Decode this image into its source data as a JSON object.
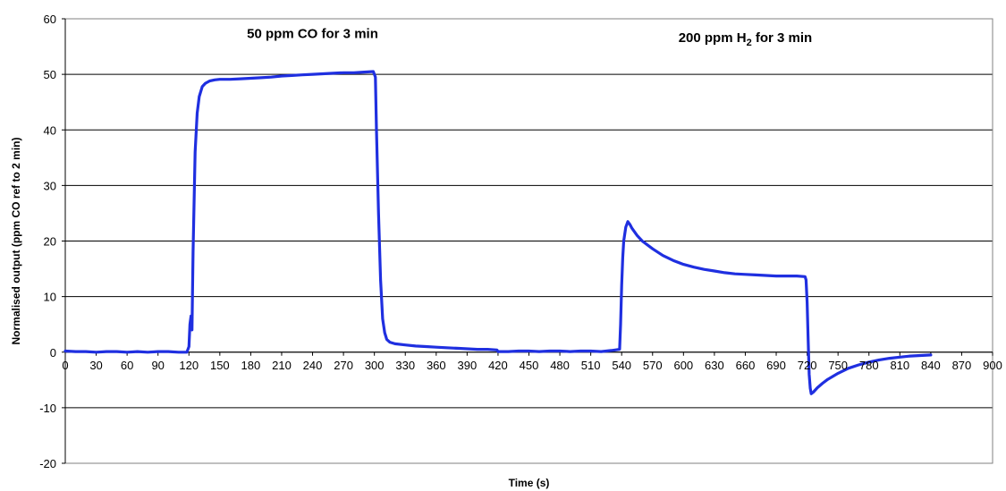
{
  "chart_data": {
    "type": "line",
    "title": "",
    "xlabel": "Time (s)",
    "ylabel": "Normalised output (ppm CO ref to 2 min)",
    "xlim": [
      0,
      900
    ],
    "ylim": [
      -20,
      60
    ],
    "x_ticks": [
      0,
      30,
      60,
      90,
      120,
      150,
      180,
      210,
      240,
      270,
      300,
      330,
      360,
      390,
      420,
      450,
      480,
      510,
      540,
      570,
      600,
      630,
      660,
      690,
      720,
      750,
      780,
      810,
      840,
      870,
      900
    ],
    "y_ticks": [
      -20,
      -10,
      0,
      10,
      20,
      30,
      40,
      50,
      60
    ],
    "grid": "horizontal",
    "legend": "none",
    "line_color": "#1f2fe0",
    "annotations": [
      {
        "text": "50 ppm CO for 3 min",
        "x": 240,
        "y": 56.5
      },
      {
        "text": "200 ppm H",
        "sub": "2",
        "tail": " for 3 min",
        "x": 660,
        "y": 55.8
      }
    ],
    "series": [
      {
        "x": [
          0,
          10,
          20,
          30,
          40,
          50,
          60,
          70,
          80,
          90,
          100,
          110,
          118,
          120,
          121,
          122,
          123,
          124,
          126,
          128,
          130,
          133,
          136,
          140,
          145,
          150,
          160,
          170,
          180,
          190,
          200,
          210,
          220,
          230,
          240,
          250,
          260,
          270,
          280,
          290,
          299,
          301,
          302,
          304,
          306,
          308,
          310,
          312,
          315,
          320,
          330,
          340,
          350,
          360,
          370,
          380,
          390,
          400,
          410,
          419,
          420,
          430,
          440,
          450,
          460,
          470,
          480,
          490,
          500,
          510,
          520,
          530,
          538,
          539,
          540,
          541,
          542,
          544,
          546,
          548,
          550,
          555,
          560,
          570,
          580,
          590,
          600,
          610,
          620,
          630,
          640,
          650,
          660,
          670,
          680,
          690,
          700,
          710,
          718,
          719,
          720,
          721,
          722,
          723,
          724,
          726,
          728,
          730,
          735,
          740,
          750,
          760,
          770,
          780,
          790,
          800,
          810,
          820,
          830,
          840
        ],
        "y": [
          0.2,
          0.1,
          0.1,
          0.0,
          0.1,
          0.1,
          0.0,
          0.1,
          0.0,
          0.1,
          0.1,
          0.0,
          0.0,
          1.0,
          5.0,
          6.5,
          4.0,
          18.0,
          36.0,
          43.0,
          46.0,
          47.8,
          48.4,
          48.8,
          49.0,
          49.1,
          49.1,
          49.2,
          49.3,
          49.4,
          49.5,
          49.7,
          49.8,
          49.9,
          50.0,
          50.1,
          50.2,
          50.3,
          50.3,
          50.4,
          50.5,
          49.5,
          40.0,
          25.0,
          13.0,
          6.0,
          3.5,
          2.3,
          1.8,
          1.5,
          1.3,
          1.1,
          1.0,
          0.9,
          0.8,
          0.7,
          0.6,
          0.5,
          0.5,
          0.4,
          0.1,
          0.1,
          0.2,
          0.2,
          0.1,
          0.2,
          0.2,
          0.1,
          0.2,
          0.2,
          0.1,
          0.3,
          0.5,
          5.0,
          12.0,
          17.0,
          20.0,
          22.5,
          23.5,
          23.0,
          22.3,
          21.0,
          20.0,
          18.6,
          17.4,
          16.5,
          15.8,
          15.3,
          14.9,
          14.6,
          14.3,
          14.1,
          14.0,
          13.9,
          13.8,
          13.7,
          13.7,
          13.7,
          13.6,
          13.0,
          9.0,
          2.0,
          -4.0,
          -6.5,
          -7.5,
          -7.2,
          -6.8,
          -6.4,
          -5.6,
          -4.9,
          -3.8,
          -2.9,
          -2.3,
          -1.8,
          -1.4,
          -1.1,
          -0.9,
          -0.7,
          -0.6,
          -0.5
        ]
      }
    ]
  }
}
